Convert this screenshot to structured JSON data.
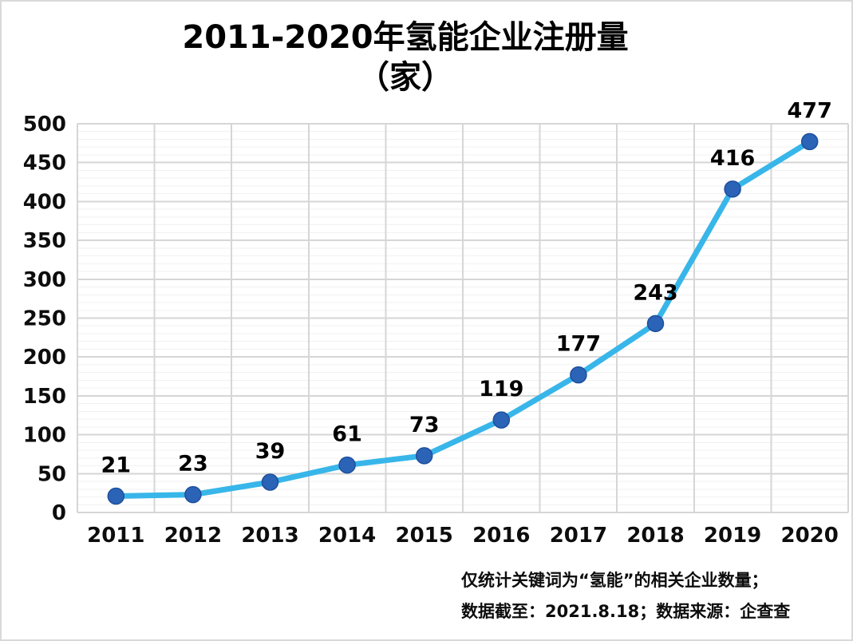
{
  "chart": {
    "title_line1": "2011-2020年氢能企业注册量",
    "title_line2": "（家）",
    "footnote_line1": "仅统计关键词为“氢能”的相关企业数量；",
    "footnote_line2": "数据截至：2021.8.18；数据来源：企查查"
  },
  "chart_data": {
    "type": "line",
    "title": "2011-2020年氢能企业注册量（家）",
    "categories": [
      "2011",
      "2012",
      "2013",
      "2014",
      "2015",
      "2016",
      "2017",
      "2018",
      "2019",
      "2020"
    ],
    "values": [
      21,
      23,
      39,
      61,
      73,
      119,
      177,
      243,
      416,
      477
    ],
    "xlabel": "",
    "ylabel": "",
    "ylim": [
      0,
      500
    ],
    "y_major_step": 50,
    "y_minor_step": 10,
    "y_tick_labels": [
      "0",
      "50",
      "100",
      "150",
      "200",
      "250",
      "300",
      "350",
      "400",
      "450",
      "500"
    ],
    "grid": "horizontal-major-minor-and-vertical-category-boundaries",
    "legend_position": "none",
    "data_labels_position": "above",
    "footnote_line1": "仅统计关键词为“氢能”的相关企业数量；",
    "footnote_line2": "数据截至：2021.8.18；数据来源：企查查",
    "colors": {
      "line": "#38b6e9",
      "marker_fill": "#2b63b6",
      "marker_edge": "#1e4f9d",
      "major_grid": "#d6d6d6",
      "minor_grid": "#f1f1f1",
      "text": "#0d0d0d",
      "background": "#ffffff"
    }
  }
}
